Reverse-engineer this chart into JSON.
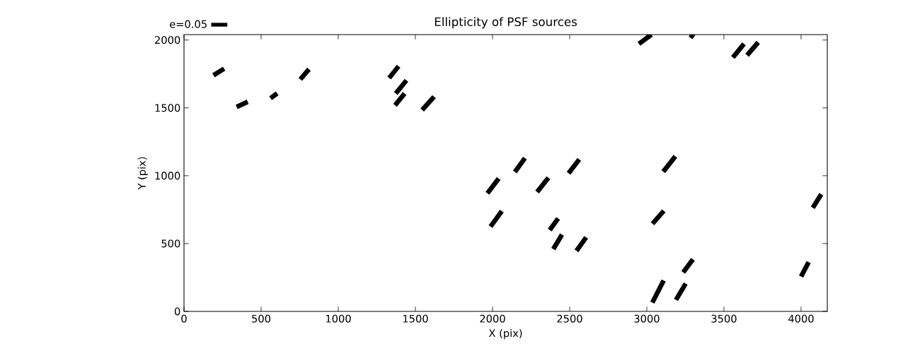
{
  "chart_data": {
    "type": "line",
    "title": "Ellipticity of PSF sources",
    "xlabel": "X (pix)",
    "ylabel": "Y (pix)",
    "xlim": [
      0,
      4170
    ],
    "ylim": [
      0,
      2040
    ],
    "xticks": [
      0,
      500,
      1000,
      1500,
      2000,
      2500,
      3000,
      3500,
      4000
    ],
    "yticks": [
      0,
      500,
      1000,
      1500,
      2000
    ],
    "legend": "top left",
    "series": [
      {
        "name": "e=0.05",
        "color": "#000000"
      },
      {
        "color": "#000000",
        "x": [
          191,
          260
        ],
        "values": [
          1740,
          1789
        ]
      },
      {
        "color": "#000000",
        "x": [
          341,
          413
        ],
        "values": [
          1507,
          1545
        ]
      },
      {
        "color": "#000000",
        "x": [
          561,
          604
        ],
        "values": [
          1571,
          1607
        ]
      },
      {
        "color": "#000000",
        "x": [
          754,
          810
        ],
        "values": [
          1710,
          1785
        ]
      },
      {
        "color": "#000000",
        "x": [
          1330,
          1391
        ],
        "values": [
          1720,
          1807
        ]
      },
      {
        "color": "#000000",
        "x": [
          1373,
          1442
        ],
        "values": [
          1606,
          1703
        ]
      },
      {
        "color": "#000000",
        "x": [
          1368,
          1430
        ],
        "values": [
          1519,
          1606
        ]
      },
      {
        "color": "#000000",
        "x": [
          1544,
          1621
        ],
        "values": [
          1484,
          1582
        ]
      },
      {
        "color": "#000000",
        "x": [
          2949,
          3030
        ],
        "values": [
          1972,
          2040
        ]
      },
      {
        "color": "#000000",
        "x": [
          3280,
          3305
        ],
        "values": [
          2040,
          2020
        ]
      },
      {
        "color": "#000000",
        "x": [
          3558,
          3630
        ],
        "values": [
          1872,
          1972
        ]
      },
      {
        "color": "#000000",
        "x": [
          3650,
          3722
        ],
        "values": [
          1888,
          1983
        ]
      },
      {
        "color": "#000000",
        "x": [
          1967,
          2040
        ],
        "values": [
          870,
          980
        ]
      },
      {
        "color": "#000000",
        "x": [
          2145,
          2210
        ],
        "values": [
          1028,
          1130
        ]
      },
      {
        "color": "#000000",
        "x": [
          2289,
          2362
        ],
        "values": [
          880,
          985
        ]
      },
      {
        "color": "#000000",
        "x": [
          2493,
          2562
        ],
        "values": [
          1018,
          1120
        ]
      },
      {
        "color": "#000000",
        "x": [
          3107,
          3185
        ],
        "values": [
          1030,
          1143
        ]
      },
      {
        "color": "#000000",
        "x": [
          1987,
          2060
        ],
        "values": [
          625,
          739
        ]
      },
      {
        "color": "#000000",
        "x": [
          2371,
          2425
        ],
        "values": [
          600,
          685
        ]
      },
      {
        "color": "#000000",
        "x": [
          2394,
          2450
        ],
        "values": [
          459,
          566
        ]
      },
      {
        "color": "#000000",
        "x": [
          2544,
          2607
        ],
        "values": [
          446,
          546
        ]
      },
      {
        "color": "#000000",
        "x": [
          3037,
          3110
        ],
        "values": [
          646,
          741
        ]
      },
      {
        "color": "#000000",
        "x": [
          4076,
          4131
        ],
        "values": [
          764,
          864
        ]
      },
      {
        "color": "#000000",
        "x": [
          3236,
          3299
        ],
        "values": [
          288,
          384
        ]
      },
      {
        "color": "#000000",
        "x": [
          3036,
          3109
        ],
        "values": [
          65,
          228
        ]
      },
      {
        "color": "#000000",
        "x": [
          3189,
          3252
        ],
        "values": [
          85,
          205
        ]
      },
      {
        "color": "#000000",
        "x": [
          4000,
          4049
        ],
        "values": [
          257,
          363
        ]
      }
    ]
  }
}
